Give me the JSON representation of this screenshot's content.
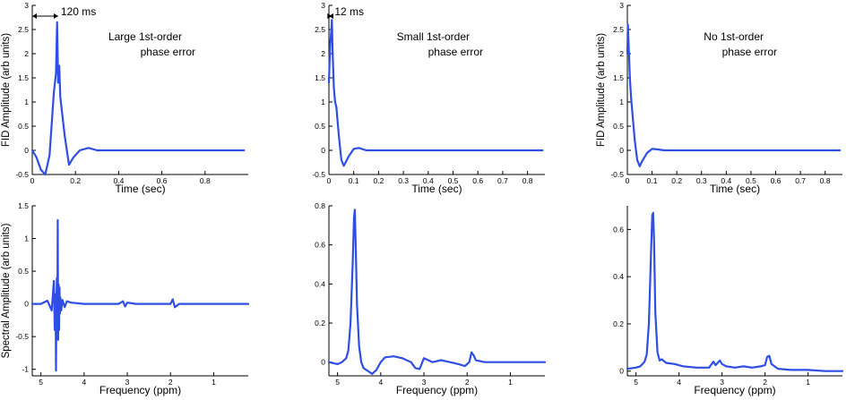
{
  "style": {
    "line_color": "#2f4ee6",
    "axis_color": "#000000"
  },
  "chart_data": [
    {
      "type": "line",
      "row": "top",
      "col": 0,
      "annotation_lines": [
        "Large 1st-order",
        "phase error"
      ],
      "xlabel": "Time (sec)",
      "ylabel": "FID Amplitude (arb units)",
      "xlim": [
        0,
        1.0
      ],
      "ylim": [
        -0.5,
        3
      ],
      "xticks": [
        0,
        0.2,
        0.4,
        0.6,
        0.8
      ],
      "xtick_labels": [
        "0",
        "0.2",
        "0.4",
        "0.6",
        "0.8"
      ],
      "yticks": [
        -0.5,
        0,
        0.5,
        1,
        1.5,
        2,
        2.5,
        3
      ],
      "ytick_labels": [
        "-0.5",
        "0",
        "0.5",
        "1",
        "1.5",
        "2",
        "2.5",
        "3"
      ],
      "marker": {
        "label": "120 ms",
        "x0": 0.0,
        "x1": 0.12
      },
      "series": [
        {
          "x": [
            0,
            0.02,
            0.04,
            0.06,
            0.08,
            0.1,
            0.11,
            0.115,
            0.12,
            0.125,
            0.13,
            0.15,
            0.17,
            0.19,
            0.22,
            0.26,
            0.3,
            0.4,
            0.6,
            0.8,
            0.98
          ],
          "y": [
            0,
            -0.15,
            -0.4,
            -0.5,
            -0.1,
            1.2,
            1.6,
            2.65,
            1.4,
            1.75,
            1.1,
            0.3,
            -0.3,
            -0.15,
            0.0,
            0.05,
            0.0,
            0.0,
            0.0,
            0.0,
            0.0
          ]
        }
      ]
    },
    {
      "type": "line",
      "row": "top",
      "col": 1,
      "annotation_lines": [
        "Small 1st-order",
        "phase error"
      ],
      "xlabel": "Time (sec)",
      "ylabel": "",
      "xlim": [
        0,
        0.87
      ],
      "ylim": [
        -0.5,
        3
      ],
      "xticks": [
        0,
        0.1,
        0.2,
        0.3,
        0.4,
        0.5,
        0.6,
        0.7,
        0.8
      ],
      "xtick_labels": [
        "0",
        "0.1",
        "0.2",
        "0.3",
        "0.4",
        "0.5",
        "0.6",
        "0.7",
        "0.8"
      ],
      "yticks": [
        -0.5,
        0,
        0.5,
        1,
        1.5,
        2,
        2.5,
        3
      ],
      "ytick_labels": [
        "-0.5",
        "0",
        "0.5",
        "1",
        "1.5",
        "2",
        "2.5",
        "3"
      ],
      "marker": {
        "label": "12 ms",
        "x0": 0.0,
        "x1": 0.012
      },
      "series": [
        {
          "x": [
            0,
            0.005,
            0.01,
            0.012,
            0.015,
            0.02,
            0.025,
            0.03,
            0.04,
            0.05,
            0.06,
            0.08,
            0.1,
            0.12,
            0.15,
            0.2,
            0.3,
            0.5,
            0.7,
            0.86
          ],
          "y": [
            1.4,
            2.2,
            2.5,
            2.7,
            2.0,
            1.3,
            1.0,
            0.9,
            0.3,
            -0.2,
            -0.32,
            -0.12,
            0.03,
            0.05,
            0.0,
            0.0,
            0.0,
            0.0,
            0.0,
            0.0
          ]
        }
      ]
    },
    {
      "type": "line",
      "row": "top",
      "col": 2,
      "annotation_lines": [
        "No 1st-order",
        "phase error"
      ],
      "xlabel": "Time (sec)",
      "ylabel": "FID Amplitude (arb units)",
      "xlim": [
        0,
        0.87
      ],
      "ylim": [
        -0.5,
        3
      ],
      "xticks": [
        0,
        0.1,
        0.2,
        0.3,
        0.4,
        0.5,
        0.6,
        0.7,
        0.8
      ],
      "xtick_labels": [
        "0",
        "0.1",
        "0.2",
        "0.3",
        "0.4",
        "0.5",
        "0.6",
        "0.7",
        "0.8"
      ],
      "yticks": [
        -0.5,
        0,
        0.5,
        1,
        1.5,
        2,
        2.5,
        3
      ],
      "ytick_labels": [
        "-0.5",
        "0",
        "0.5",
        "1",
        "1.5",
        "2",
        "2.5",
        "3"
      ],
      "series": [
        {
          "x": [
            0,
            0.002,
            0.005,
            0.01,
            0.015,
            0.02,
            0.025,
            0.03,
            0.04,
            0.05,
            0.06,
            0.08,
            0.1,
            0.12,
            0.15,
            0.2,
            0.3,
            0.5,
            0.7,
            0.86
          ],
          "y": [
            2.0,
            2.6,
            2.2,
            1.5,
            1.1,
            0.8,
            0.5,
            0.2,
            -0.2,
            -0.33,
            -0.22,
            -0.05,
            0.03,
            0.02,
            0.0,
            0.0,
            0.0,
            0.0,
            0.0,
            0.0
          ]
        }
      ]
    },
    {
      "type": "line",
      "row": "bottom",
      "col": 0,
      "xlabel": "Frequency (ppm)",
      "ylabel": "Spectral Amplitude (arb units)",
      "xlim": [
        5.2,
        0.2
      ],
      "x_reversed": true,
      "ylim": [
        -1.1,
        1.5
      ],
      "xticks": [
        5,
        4,
        3,
        2,
        1
      ],
      "xtick_labels": [
        "5",
        "4",
        "3",
        "2",
        "1"
      ],
      "yticks": [
        -1,
        -0.5,
        0,
        0.5,
        1,
        1.5
      ],
      "ytick_labels": [
        "-1",
        "-0.5",
        "0",
        "0.5",
        "1",
        "1.5"
      ],
      "series": [
        {
          "x": [
            5.2,
            5.0,
            4.85,
            4.75,
            4.7,
            4.68,
            4.66,
            4.65,
            4.64,
            4.63,
            4.62,
            4.61,
            4.6,
            4.59,
            4.58,
            4.57,
            4.56,
            4.55,
            4.53,
            4.5,
            4.45,
            4.4,
            4.3,
            4.0,
            3.2,
            3.1,
            3.05,
            3.0,
            2.8,
            2.0,
            1.95,
            1.9,
            1.8,
            1.0,
            0.2
          ],
          "y": [
            0.0,
            0.0,
            0.05,
            -0.1,
            0.35,
            -0.4,
            0.15,
            -1.02,
            0.05,
            0.4,
            -0.3,
            1.28,
            -0.55,
            0.3,
            -0.4,
            0.25,
            -0.15,
            0.1,
            -0.1,
            0.06,
            -0.05,
            0.04,
            0.02,
            0.0,
            0.0,
            0.04,
            -0.04,
            0.02,
            0.0,
            0.0,
            0.07,
            -0.05,
            0.0,
            0.0,
            0.0
          ]
        }
      ]
    },
    {
      "type": "line",
      "row": "bottom",
      "col": 1,
      "xlabel": "Frequency (ppm)",
      "ylabel": "",
      "xlim": [
        5.2,
        0.2
      ],
      "x_reversed": true,
      "ylim": [
        -0.07,
        0.8
      ],
      "xticks": [
        5,
        4,
        3,
        2,
        1
      ],
      "xtick_labels": [
        "5",
        "4",
        "3",
        "2",
        "1"
      ],
      "yticks": [
        0,
        0.2,
        0.4,
        0.6,
        0.8
      ],
      "ytick_labels": [
        "0",
        "0.2",
        "0.4",
        "0.6",
        "0.8"
      ],
      "series": [
        {
          "x": [
            5.2,
            5.0,
            4.9,
            4.8,
            4.75,
            4.7,
            4.65,
            4.62,
            4.6,
            4.58,
            4.55,
            4.5,
            4.45,
            4.4,
            4.3,
            4.2,
            4.1,
            4.0,
            3.9,
            3.7,
            3.5,
            3.3,
            3.2,
            3.1,
            3.0,
            2.8,
            2.6,
            2.4,
            2.2,
            2.05,
            1.95,
            1.9,
            1.85,
            1.8,
            1.6,
            1.3,
            1.0,
            0.6,
            0.2
          ],
          "y": [
            0.0,
            -0.01,
            0.0,
            0.02,
            0.06,
            0.2,
            0.5,
            0.74,
            0.78,
            0.6,
            0.3,
            0.08,
            0.0,
            -0.03,
            -0.045,
            -0.06,
            -0.04,
            0.0,
            0.025,
            0.03,
            0.02,
            0.0,
            -0.03,
            -0.035,
            0.02,
            0.0,
            0.01,
            0.0,
            -0.01,
            -0.02,
            0.0,
            0.05,
            0.035,
            0.01,
            0.0,
            0.0,
            0.0,
            0.0,
            0.0
          ]
        }
      ]
    },
    {
      "type": "line",
      "row": "bottom",
      "col": 2,
      "xlabel": "Frequency (ppm)",
      "ylabel": "",
      "xlim": [
        5.2,
        0.2
      ],
      "x_reversed": true,
      "ylim": [
        -0.02,
        0.7
      ],
      "xticks": [
        5,
        4,
        3,
        2,
        1
      ],
      "xtick_labels": [
        "5",
        "4",
        "3",
        "2",
        "1"
      ],
      "yticks": [
        0,
        0.2,
        0.4,
        0.6
      ],
      "ytick_labels": [
        "0",
        "0.2",
        "0.4",
        "0.6"
      ],
      "series": [
        {
          "x": [
            5.2,
            5.0,
            4.9,
            4.8,
            4.75,
            4.7,
            4.65,
            4.62,
            4.6,
            4.58,
            4.55,
            4.5,
            4.45,
            4.4,
            4.3,
            4.1,
            3.9,
            3.6,
            3.3,
            3.2,
            3.15,
            3.1,
            3.05,
            3.0,
            2.9,
            2.7,
            2.5,
            2.3,
            2.1,
            2.0,
            1.95,
            1.9,
            1.85,
            1.7,
            1.4,
            1.0,
            0.6,
            0.2
          ],
          "y": [
            0.01,
            0.015,
            0.02,
            0.04,
            0.07,
            0.2,
            0.5,
            0.66,
            0.67,
            0.55,
            0.25,
            0.08,
            0.045,
            0.05,
            0.035,
            0.03,
            0.02,
            0.015,
            0.015,
            0.04,
            0.025,
            0.035,
            0.045,
            0.03,
            0.02,
            0.015,
            0.02,
            0.015,
            0.02,
            0.025,
            0.06,
            0.065,
            0.03,
            0.01,
            0.005,
            0.005,
            0.0,
            0.0
          ]
        }
      ]
    }
  ]
}
